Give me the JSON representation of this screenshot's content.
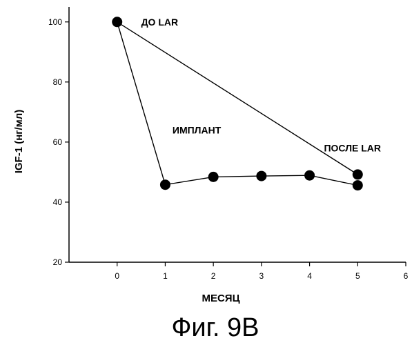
{
  "chart_data": {
    "type": "scatter",
    "xlabel": "МЕСЯЦ",
    "ylabel": "IGF-1 (нг/мл)",
    "xlim": [
      -1,
      6
    ],
    "ylim": [
      20,
      105
    ],
    "xticks": [
      0,
      1,
      2,
      3,
      4,
      5,
      6
    ],
    "yticks": [
      20,
      40,
      60,
      80,
      100
    ],
    "grid": false,
    "series": [
      {
        "points": [
          {
            "x": 0,
            "y": 100
          },
          {
            "x": 1,
            "y": 45.8
          },
          {
            "x": 2,
            "y": 48.4
          },
          {
            "x": 3,
            "y": 48.7
          },
          {
            "x": 4,
            "y": 48.9
          },
          {
            "x": 5,
            "y": 45.6
          }
        ]
      },
      {
        "points": [
          {
            "x": 0,
            "y": 100
          },
          {
            "x": 5,
            "y": 49.2
          }
        ]
      }
    ],
    "annotations": [
      {
        "text": "ДО LAR",
        "x": 0.5,
        "y": 100
      },
      {
        "text": "ИМПЛАНТ",
        "x": 1.15,
        "y": 64
      },
      {
        "text": "ПОСЛЕ LAR",
        "x": 4.3,
        "y": 58
      }
    ]
  },
  "caption": "Фиг. 9B",
  "colors": {
    "line": "#000000",
    "marker": "#000000",
    "axis": "#000000"
  }
}
